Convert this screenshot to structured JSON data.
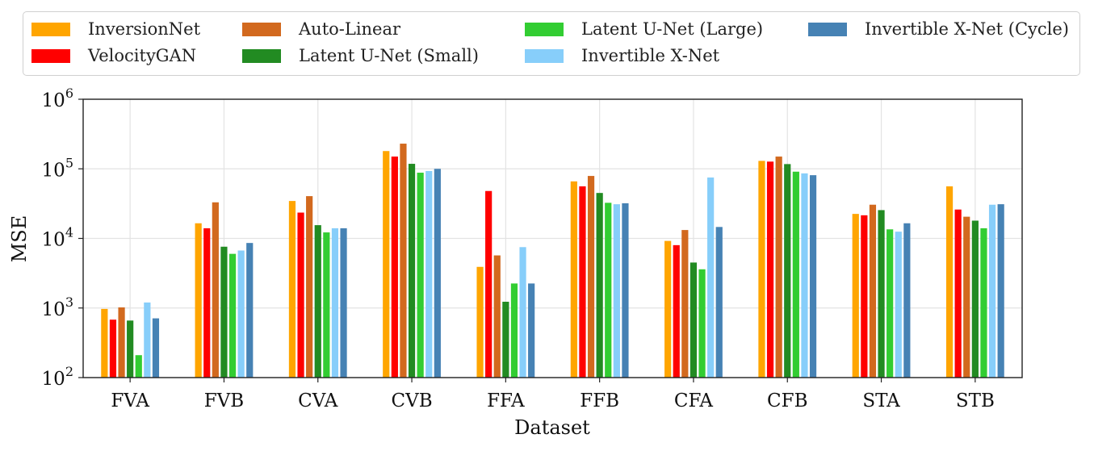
{
  "chart_data": {
    "type": "bar",
    "xlabel": "Dataset",
    "ylabel": "MSE",
    "yscale": "log",
    "ylim": [
      100,
      1000000
    ],
    "grid": true,
    "legend_position": "top",
    "categories": [
      "FVA",
      "FVB",
      "CVA",
      "CVB",
      "FFA",
      "FFB",
      "CFA",
      "CFB",
      "STA",
      "STB"
    ],
    "yticks": [
      {
        "base": "10",
        "exp": "2",
        "value": 100
      },
      {
        "base": "10",
        "exp": "3",
        "value": 1000
      },
      {
        "base": "10",
        "exp": "4",
        "value": 10000
      },
      {
        "base": "10",
        "exp": "5",
        "value": 100000
      },
      {
        "base": "10",
        "exp": "6",
        "value": 1000000
      }
    ],
    "series": [
      {
        "name": "InversionNet",
        "color": "#FFA500",
        "values": [
          970,
          16500,
          34500,
          180000,
          3900,
          66000,
          9200,
          130000,
          22500,
          56000
        ]
      },
      {
        "name": "VelocityGAN",
        "color": "#FF0000",
        "values": [
          680,
          14000,
          23500,
          150000,
          48000,
          56000,
          8000,
          127000,
          21500,
          26000
        ]
      },
      {
        "name": "Auto-Linear",
        "color": "#D2691E",
        "values": [
          1020,
          33000,
          40500,
          230000,
          5700,
          79000,
          13200,
          150000,
          30500,
          20500
        ]
      },
      {
        "name": "Latent U-Net (Small)",
        "color": "#228B22",
        "values": [
          660,
          7600,
          15500,
          118000,
          1230,
          45000,
          4500,
          117000,
          25500,
          18000
        ]
      },
      {
        "name": "Latent U-Net (Large)",
        "color": "#32CD32",
        "values": [
          210,
          6000,
          12200,
          88000,
          2250,
          32500,
          3600,
          91000,
          13500,
          14000
        ]
      },
      {
        "name": "Invertible X-Net",
        "color": "#87CEFA",
        "values": [
          1200,
          6700,
          14000,
          93000,
          7500,
          31000,
          75000,
          86000,
          12500,
          30500
        ]
      },
      {
        "name": "Invertible X-Net (Cycle)",
        "color": "#4682B4",
        "values": [
          710,
          8600,
          14000,
          100000,
          2250,
          32000,
          14600,
          81000,
          16500,
          31000
        ]
      }
    ]
  }
}
